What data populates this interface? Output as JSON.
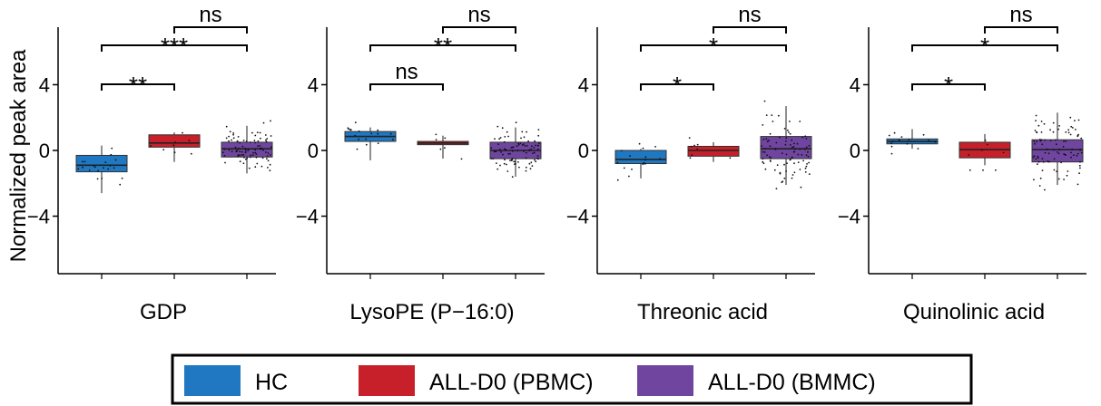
{
  "chart_data": {
    "type": "box",
    "ylabel": "Normalized peak area",
    "ylim": [
      -7.5,
      7.5
    ],
    "yticks": [
      4,
      0,
      -4
    ],
    "ytick_labels": [
      "4",
      "0",
      "−4"
    ],
    "groups": [
      {
        "name": "HC",
        "color": "#1f78c1"
      },
      {
        "name": "ALL-D0 (PBMC)",
        "color": "#c8202a"
      },
      {
        "name": "ALL-D0 (BMMC)",
        "color": "#6f45a0"
      }
    ],
    "panels": [
      {
        "title": "GDP",
        "boxes": [
          {
            "group": "HC",
            "q1": -1.3,
            "median": -0.9,
            "q3": -0.3,
            "whisker_low": -2.6,
            "whisker_high": 0.3,
            "n_points": 20
          },
          {
            "group": "ALL-D0 (PBMC)",
            "q1": 0.2,
            "median": 0.45,
            "q3": 0.95,
            "whisker_low": -0.7,
            "whisker_high": 1.1,
            "n_points": 8
          },
          {
            "group": "ALL-D0 (BMMC)",
            "q1": -0.4,
            "median": 0.1,
            "q3": 0.5,
            "whisker_low": -1.4,
            "whisker_high": 1.5,
            "n_points": 90
          }
        ],
        "comparisons": [
          {
            "from": 0,
            "to": 1,
            "label": "**",
            "level": 1
          },
          {
            "from": 0,
            "to": 2,
            "label": "***",
            "level": 2
          },
          {
            "from": 1,
            "to": 2,
            "label": "ns",
            "level": 3
          }
        ]
      },
      {
        "title": "LysoPE (P−16:0)",
        "boxes": [
          {
            "group": "HC",
            "q1": 0.55,
            "median": 0.85,
            "q3": 1.15,
            "whisker_low": -0.6,
            "whisker_high": 1.4,
            "n_points": 18
          },
          {
            "group": "ALL-D0 (PBMC)",
            "q1": 0.35,
            "median": 0.45,
            "q3": 0.55,
            "whisker_low": -0.5,
            "whisker_high": 0.9,
            "n_points": 6
          },
          {
            "group": "ALL-D0 (BMMC)",
            "q1": -0.5,
            "median": 0.0,
            "q3": 0.5,
            "whisker_low": -1.6,
            "whisker_high": 1.4,
            "n_points": 90
          }
        ],
        "comparisons": [
          {
            "from": 0,
            "to": 1,
            "label": "ns",
            "level": 1
          },
          {
            "from": 0,
            "to": 2,
            "label": "**",
            "level": 2
          },
          {
            "from": 1,
            "to": 2,
            "label": "ns",
            "level": 3
          }
        ]
      },
      {
        "title": "Threonic acid",
        "boxes": [
          {
            "group": "HC",
            "q1": -0.8,
            "median": -0.55,
            "q3": 0.0,
            "whisker_low": -1.7,
            "whisker_high": 0.1,
            "n_points": 16
          },
          {
            "group": "ALL-D0 (PBMC)",
            "q1": -0.35,
            "median": 0.0,
            "q3": 0.25,
            "whisker_low": -0.7,
            "whisker_high": 0.5,
            "n_points": 8
          },
          {
            "group": "ALL-D0 (BMMC)",
            "q1": -0.5,
            "median": 0.1,
            "q3": 0.85,
            "whisker_low": -2.1,
            "whisker_high": 2.7,
            "n_points": 90
          }
        ],
        "comparisons": [
          {
            "from": 0,
            "to": 1,
            "label": "*",
            "level": 1
          },
          {
            "from": 0,
            "to": 2,
            "label": "*",
            "level": 2
          },
          {
            "from": 1,
            "to": 2,
            "label": "ns",
            "level": 3
          }
        ]
      },
      {
        "title": "Quinolinic acid",
        "boxes": [
          {
            "group": "HC",
            "q1": 0.4,
            "median": 0.55,
            "q3": 0.7,
            "whisker_low": 0.1,
            "whisker_high": 1.3,
            "n_points": 14
          },
          {
            "group": "ALL-D0 (PBMC)",
            "q1": -0.45,
            "median": 0.05,
            "q3": 0.5,
            "whisker_low": -0.9,
            "whisker_high": 1.0,
            "n_points": 8
          },
          {
            "group": "ALL-D0 (BMMC)",
            "q1": -0.7,
            "median": 0.05,
            "q3": 0.65,
            "whisker_low": -2.1,
            "whisker_high": 2.3,
            "n_points": 90
          }
        ],
        "comparisons": [
          {
            "from": 0,
            "to": 1,
            "label": "*",
            "level": 1
          },
          {
            "from": 0,
            "to": 2,
            "label": "*",
            "level": 2
          },
          {
            "from": 1,
            "to": 2,
            "label": "ns",
            "level": 3
          }
        ]
      }
    ],
    "legend": {
      "placement": "bottom"
    },
    "grid": false
  }
}
